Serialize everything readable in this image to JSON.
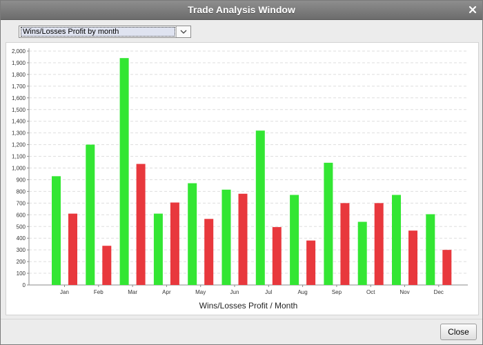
{
  "window": {
    "title": "Trade Analysis Window"
  },
  "selector": {
    "selected": "Wins/Losses Profit by month"
  },
  "footer": {
    "close_label": "Close"
  },
  "colors": {
    "wins": "#33e633",
    "losses": "#e8383d",
    "grid": "#dddddd",
    "axis": "#888888"
  },
  "chart_data": {
    "type": "bar",
    "categories": [
      "Jan",
      "Feb",
      "Mar",
      "Apr",
      "May",
      "Jun",
      "Jul",
      "Aug",
      "Sep",
      "Oct",
      "Nov",
      "Dec"
    ],
    "series": [
      {
        "values": [
          930,
          1200,
          1940,
          610,
          870,
          815,
          1320,
          770,
          1045,
          540,
          770,
          605
        ]
      },
      {
        "values": [
          610,
          335,
          1035,
          705,
          565,
          780,
          495,
          380,
          700,
          700,
          465,
          300
        ]
      }
    ],
    "title": "",
    "xlabel": "Wins/Losses Profit / Month",
    "ylabel": "",
    "ylim": [
      0,
      2000
    ],
    "yticks": [
      0,
      100,
      200,
      300,
      400,
      500,
      600,
      700,
      800,
      900,
      1000,
      1100,
      1200,
      1300,
      1400,
      1500,
      1600,
      1700,
      1800,
      1900,
      2000
    ],
    "ytick_labels": [
      "0",
      "100",
      "200",
      "300",
      "400",
      "500",
      "600",
      "700",
      "800",
      "900",
      "1,000",
      "1,100",
      "1,200",
      "1,300",
      "1,400",
      "1,500",
      "1,600",
      "1,700",
      "1,800",
      "1,900",
      "2,000"
    ],
    "grid": true,
    "legend": "none"
  }
}
